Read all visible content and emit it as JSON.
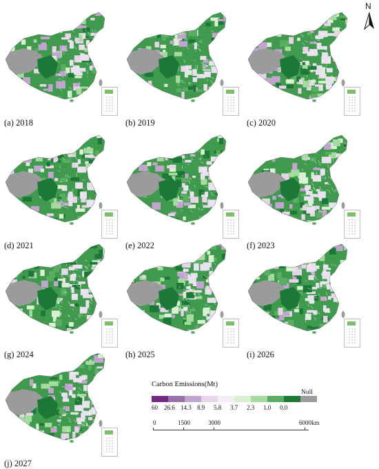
{
  "panels": [
    {
      "label": "(a) 2018"
    },
    {
      "label": "(b) 2019"
    },
    {
      "label": "(c) 2020"
    },
    {
      "label": "(d) 2021"
    },
    {
      "label": "(e) 2022"
    },
    {
      "label": "(f) 2023"
    },
    {
      "label": "(g) 2024"
    },
    {
      "label": "(h) 2025"
    },
    {
      "label": "(i) 2026"
    },
    {
      "label": "(j) 2027"
    }
  ],
  "north_arrow": {
    "letter": "N"
  },
  "legend": {
    "title": "Carbon Emissions(Mt)",
    "null_label": "Null",
    "colors": [
      "#762a83",
      "#9970ab",
      "#c2a5cf",
      "#e7d4e8",
      "#f4eef5",
      "#d9f0d3",
      "#a6dba0",
      "#5aae61",
      "#1b7837",
      "#9b9b9b"
    ],
    "ticks": [
      "60",
      "26.6",
      "14.3",
      "8.9",
      "5.8",
      "3.7",
      "2.3",
      "1.0",
      "0.0"
    ]
  },
  "scale_bar": {
    "ticks": [
      "0",
      "1500",
      "3000",
      "6000"
    ],
    "unit": "km"
  }
}
